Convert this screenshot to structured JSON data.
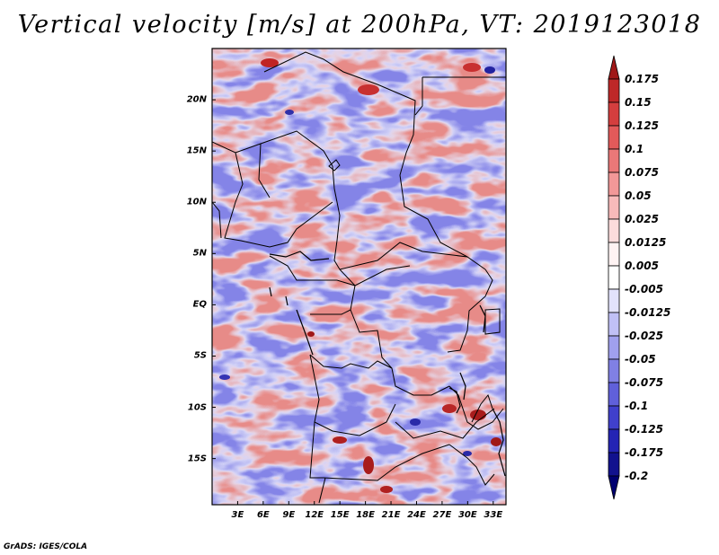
{
  "title": "Vertical velocity [m/s] at 200hPa, VT: 2019123018",
  "footer": "GrADS: IGES/COLA",
  "lat_labels": [
    "20N",
    "15N",
    "10N",
    "5N",
    "EQ",
    "5S",
    "10S",
    "15S"
  ],
  "lon_labels": [
    "3E",
    "6E",
    "9E",
    "12E",
    "15E",
    "18E",
    "21E",
    "24E",
    "27E",
    "30E",
    "33E"
  ],
  "lat_values": [
    20,
    15,
    10,
    5,
    0,
    -5,
    -10,
    -15
  ],
  "lon_values": [
    3,
    6,
    9,
    12,
    15,
    18,
    21,
    24,
    27,
    30,
    33
  ],
  "map_extent": {
    "lon_min": 0,
    "lon_max": 34.5,
    "lat_min": -19.5,
    "lat_max": 25
  },
  "colorbar": {
    "labels": [
      "0.175",
      "0.15",
      "0.125",
      "0.1",
      "0.075",
      "0.05",
      "0.025",
      "0.0125",
      "0.005",
      "-0.005",
      "-0.0125",
      "-0.025",
      "-0.05",
      "-0.075",
      "-0.1",
      "-0.125",
      "-0.175",
      "-0.2"
    ],
    "colors": [
      "#a01818",
      "#be2828",
      "#d43e3e",
      "#e25a5a",
      "#ea7878",
      "#f29898",
      "#f8baba",
      "#fcdcdc",
      "#fff3f3",
      "#ffffff",
      "#e2e2fc",
      "#c0c0f6",
      "#a0a0ee",
      "#8080e4",
      "#6060da",
      "#4040cc",
      "#2424b4",
      "#12128e",
      "#000070"
    ]
  }
}
